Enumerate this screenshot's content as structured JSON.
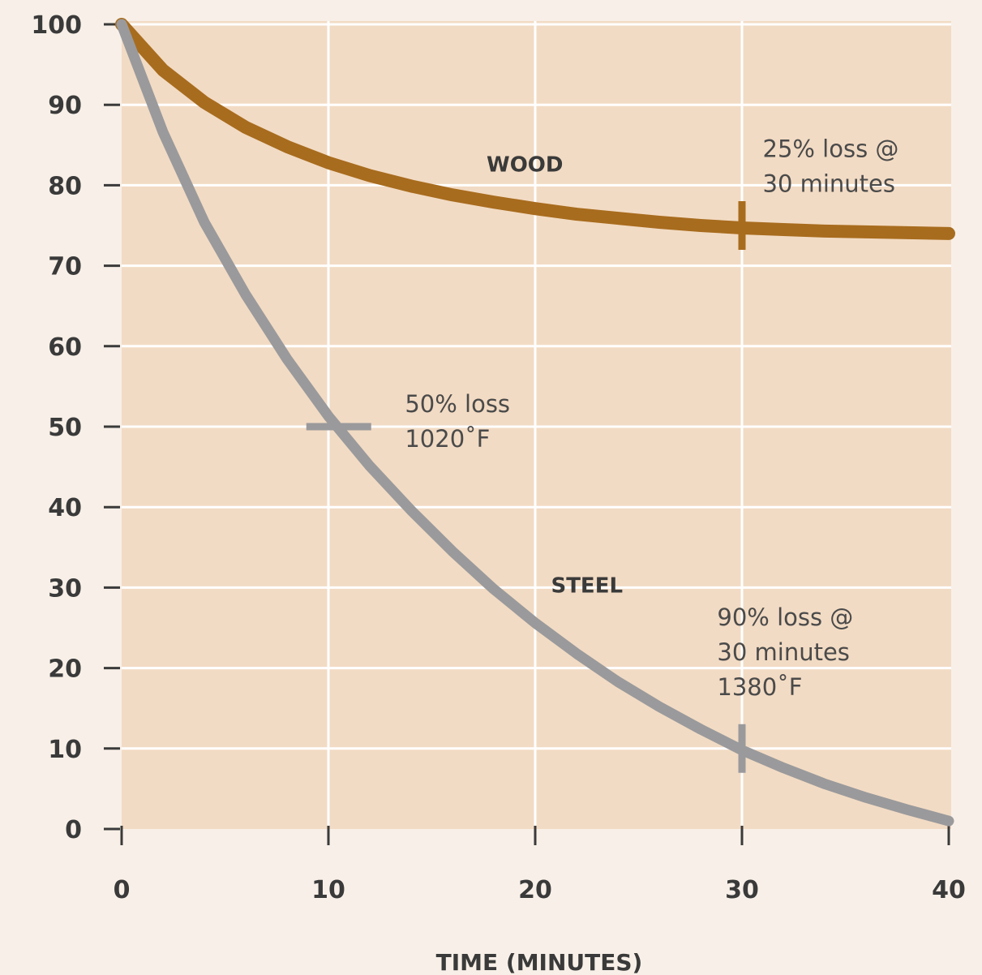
{
  "chart_data": {
    "type": "line",
    "title": "",
    "xlabel": "TIME (MINUTES)",
    "ylabel": "",
    "xlim": [
      0,
      40
    ],
    "ylim": [
      0,
      100
    ],
    "grid": true,
    "x_ticks": [
      "0",
      "10",
      "20",
      "30",
      "40"
    ],
    "y_ticks": [
      "0",
      "10",
      "20",
      "30",
      "40",
      "50",
      "60",
      "70",
      "80",
      "90",
      "100"
    ],
    "colors": {
      "plot_background": "#f2dbc4",
      "page_background": "#f8f0e8",
      "wood": "#a86c1e",
      "steel": "#9a9a9c",
      "grid": "#ffffff"
    },
    "series": [
      {
        "name": "WOOD",
        "x": [
          0,
          2,
          4,
          6,
          8,
          10,
          12,
          14,
          16,
          18,
          20,
          22,
          24,
          26,
          28,
          30,
          32,
          34,
          36,
          38,
          40
        ],
        "y": [
          100,
          94.3,
          90.3,
          87.2,
          84.8,
          82.8,
          81.2,
          79.9,
          78.8,
          77.9,
          77.1,
          76.4,
          75.9,
          75.4,
          75.0,
          74.7,
          74.5,
          74.3,
          74.2,
          74.1,
          74.0
        ]
      },
      {
        "name": "STEEL",
        "x": [
          0,
          2,
          4,
          6,
          8,
          10,
          12,
          14,
          16,
          18,
          20,
          22,
          24,
          26,
          28,
          30,
          32,
          34,
          36,
          38,
          40
        ],
        "y": [
          100,
          86.6,
          75.4,
          66.4,
          58.4,
          51.3,
          45.1,
          39.6,
          34.5,
          29.8,
          25.6,
          21.8,
          18.3,
          15.2,
          12.4,
          9.8,
          7.6,
          5.6,
          3.9,
          2.4,
          1.0
        ]
      }
    ],
    "markers": [
      {
        "series": "WOOD",
        "x": 30,
        "y": 75,
        "orientation": "vertical"
      },
      {
        "series": "STEEL",
        "x": 10.5,
        "y": 50,
        "orientation": "horizontal"
      },
      {
        "series": "STEEL",
        "x": 30,
        "y": 10,
        "orientation": "vertical"
      }
    ],
    "series_labels": [
      {
        "text": "WOOD",
        "x": 19.5,
        "y": 81.7
      },
      {
        "text": "STEEL",
        "x": 22.5,
        "y": 29.4
      }
    ],
    "annotations": [
      {
        "lines": [
          "25% loss @",
          "30 minutes"
        ],
        "x": 31,
        "y": 83.5
      },
      {
        "lines": [
          "50% loss",
          "1020˚F"
        ],
        "x": 13.7,
        "y": 51.8
      },
      {
        "lines": [
          "90% loss @",
          "30 minutes",
          "1380˚F"
        ],
        "x": 28.8,
        "y": 25.3
      }
    ]
  }
}
